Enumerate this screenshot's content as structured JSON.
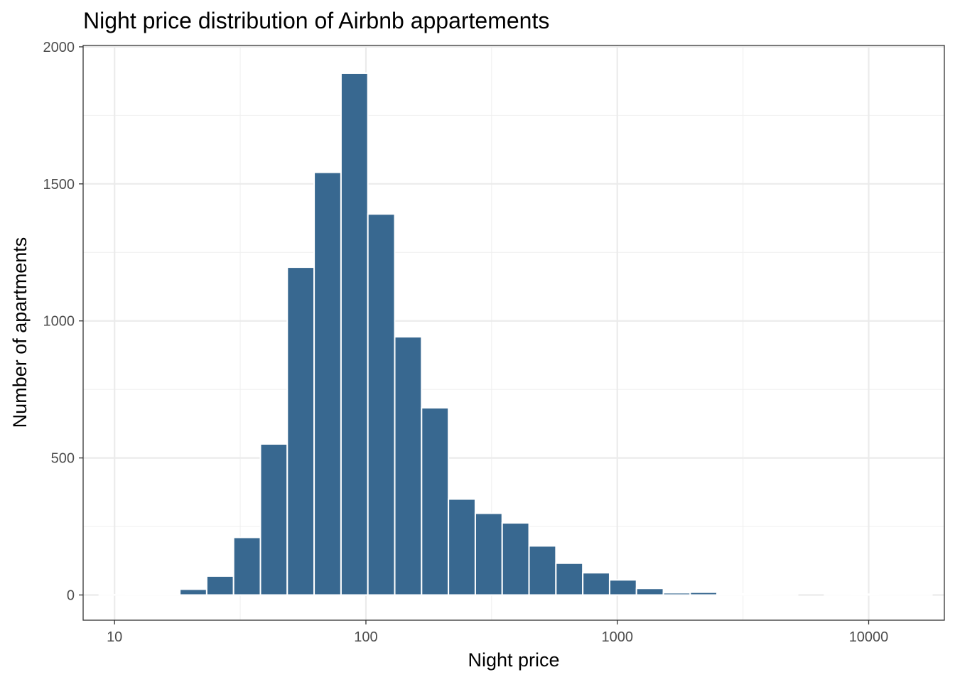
{
  "chart_data": {
    "type": "bar",
    "title": "Night price distribution of Airbnb appartements",
    "xlabel": "Night price",
    "ylabel": "Number of apartments",
    "x_scale": "log10",
    "xlim": [
      7.5,
      20000
    ],
    "ylim": [
      -92,
      2005
    ],
    "x_ticks": [
      10,
      100,
      1000,
      10000
    ],
    "x_tick_labels": [
      "10",
      "100",
      "1000",
      "10000"
    ],
    "y_ticks": [
      0,
      500,
      1000,
      1500,
      2000
    ],
    "y_tick_labels": [
      "0",
      "500",
      "1000",
      "1500",
      "2000"
    ],
    "grid": true,
    "legend": "none",
    "bar_color": "#386890",
    "bin_edges": [
      8.69,
      11.12,
      14.22,
      18.19,
      23.26,
      29.75,
      38.05,
      48.66,
      62.23,
      79.6,
      101.8,
      130.2,
      166.5,
      213.0,
      272.4,
      348.4,
      445.6,
      569.9,
      728.9,
      932.2,
      1192,
      1525,
      1950,
      2494,
      3190,
      4080,
      5218,
      6673,
      8535,
      10916,
      13961,
      17856
    ],
    "values": [
      1,
      2,
      4,
      21,
      69,
      210,
      551,
      1196,
      1542,
      1904,
      1390,
      942,
      683,
      350,
      298,
      263,
      179,
      116,
      81,
      55,
      24,
      8,
      10,
      4,
      2,
      1,
      0,
      1,
      3,
      1,
      1
    ]
  }
}
